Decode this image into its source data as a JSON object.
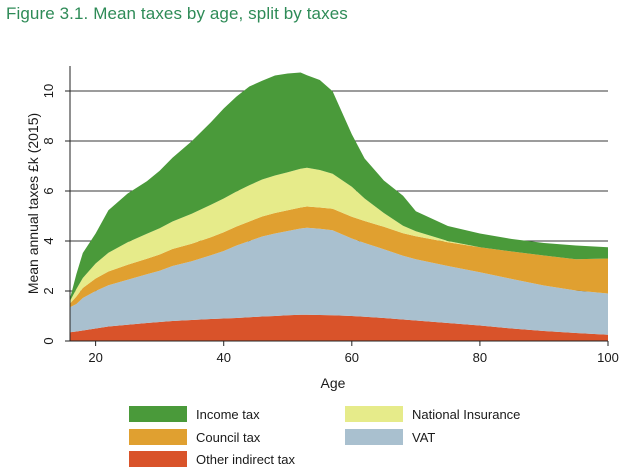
{
  "figure": {
    "title": "Figure 3.1. Mean taxes by age, split by taxes"
  },
  "chart_data": {
    "type": "area",
    "stacked": true,
    "xlabel": "Age",
    "ylabel": "Mean annual taxes £k (2015)",
    "xlim": [
      16,
      100
    ],
    "ylim": [
      0,
      11
    ],
    "x_ticks": [
      20,
      40,
      60,
      80,
      100
    ],
    "y_ticks": [
      0,
      2,
      4,
      6,
      8,
      10
    ],
    "grid": "horizontal",
    "legend_position": "bottom",
    "x": [
      16,
      17,
      18,
      20,
      22,
      25,
      28,
      30,
      32,
      35,
      38,
      40,
      42,
      44,
      46,
      48,
      50,
      52,
      53,
      55,
      57,
      60,
      62,
      65,
      68,
      70,
      75,
      80,
      85,
      90,
      95,
      100
    ],
    "series": [
      {
        "name": "Other indirect tax",
        "color": "#d9532a",
        "values": [
          0.35,
          0.38,
          0.42,
          0.5,
          0.58,
          0.65,
          0.72,
          0.76,
          0.8,
          0.84,
          0.88,
          0.9,
          0.92,
          0.95,
          0.98,
          1.0,
          1.03,
          1.05,
          1.05,
          1.04,
          1.03,
          1.0,
          0.97,
          0.92,
          0.86,
          0.82,
          0.72,
          0.62,
          0.5,
          0.4,
          0.32,
          0.25
        ]
      },
      {
        "name": "VAT",
        "color": "#a9c0cf",
        "values": [
          1.0,
          1.1,
          1.3,
          1.5,
          1.65,
          1.8,
          1.95,
          2.05,
          2.2,
          2.35,
          2.55,
          2.7,
          2.9,
          3.05,
          3.2,
          3.3,
          3.37,
          3.45,
          3.48,
          3.45,
          3.4,
          3.1,
          2.95,
          2.75,
          2.55,
          2.45,
          2.28,
          2.13,
          1.98,
          1.82,
          1.7,
          1.65
        ]
      },
      {
        "name": "Council tax",
        "color": "#e0a030",
        "values": [
          0.15,
          0.3,
          0.4,
          0.5,
          0.55,
          0.6,
          0.62,
          0.65,
          0.68,
          0.7,
          0.72,
          0.75,
          0.76,
          0.78,
          0.8,
          0.82,
          0.83,
          0.84,
          0.85,
          0.85,
          0.86,
          0.87,
          0.88,
          0.9,
          0.9,
          0.92,
          0.95,
          1.0,
          1.1,
          1.2,
          1.25,
          1.4
        ]
      },
      {
        "name": "National Insurance",
        "color": "#e6eb8a",
        "values": [
          0.1,
          0.3,
          0.4,
          0.6,
          0.75,
          0.9,
          1.0,
          1.05,
          1.1,
          1.2,
          1.3,
          1.35,
          1.4,
          1.45,
          1.48,
          1.5,
          1.52,
          1.55,
          1.55,
          1.5,
          1.4,
          1.2,
          0.9,
          0.55,
          0.3,
          0.2,
          0.05,
          0.0,
          0.0,
          0.0,
          0.0,
          0.0
        ]
      },
      {
        "name": "Income tax",
        "color": "#4a9a3a",
        "values": [
          0.1,
          0.6,
          1.0,
          1.2,
          1.7,
          1.95,
          2.1,
          2.3,
          2.55,
          2.9,
          3.3,
          3.6,
          3.8,
          3.95,
          3.95,
          4.0,
          3.95,
          3.85,
          3.7,
          3.6,
          3.3,
          2.1,
          1.6,
          1.3,
          1.2,
          0.8,
          0.6,
          0.55,
          0.5,
          0.5,
          0.55,
          0.45
        ]
      }
    ],
    "legend_order": [
      "Income tax",
      "National Insurance",
      "Council tax",
      "VAT",
      "Other indirect tax"
    ]
  }
}
